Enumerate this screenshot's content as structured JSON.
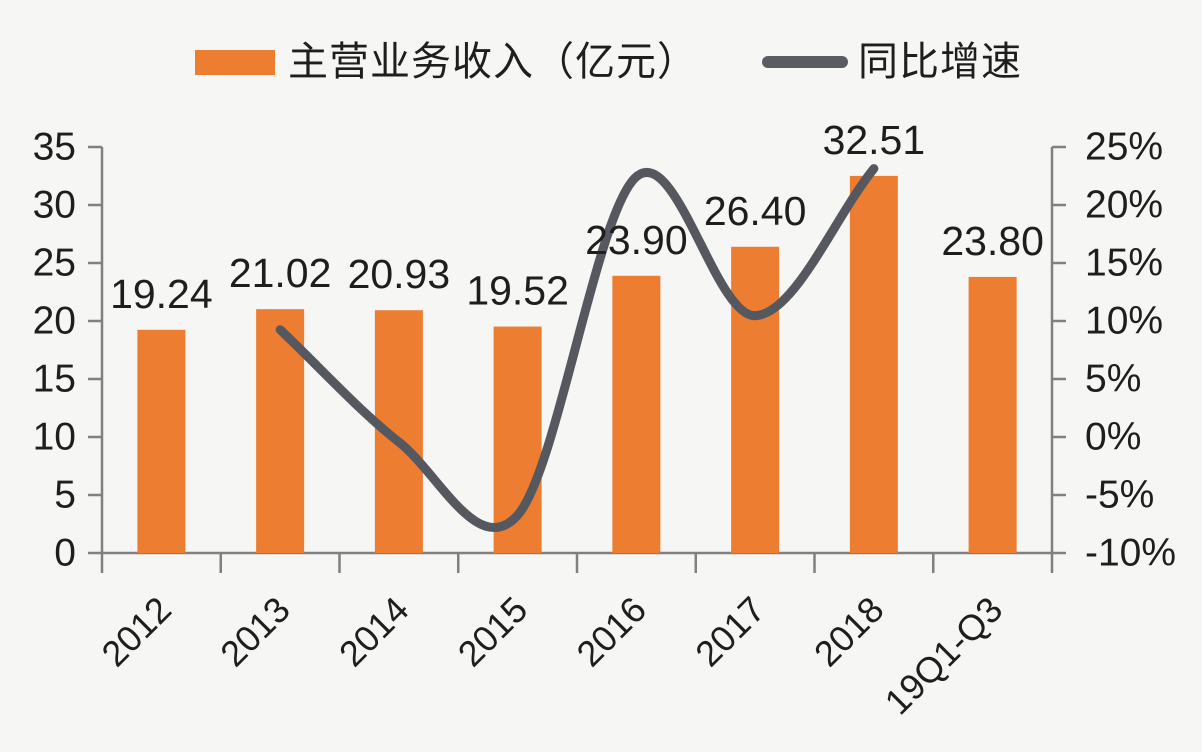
{
  "legend": [
    {
      "label": "主营业务收入（亿元）",
      "type": "bar-swatch",
      "color": "#ED7D31"
    },
    {
      "label": "同比增速",
      "type": "line-swatch",
      "color": "#595C61"
    }
  ],
  "colors": {
    "bar": "#ED7D31",
    "line": "#55585E",
    "legend_line": "#595C61",
    "axis": "#808080",
    "text": "#1e1e1e",
    "background": "#f6f6f4"
  },
  "chart_data": {
    "type": "bar",
    "subtype": "bar+smooth-line, dual axis",
    "categories": [
      "2012",
      "2013",
      "2014",
      "2015",
      "2016",
      "2017",
      "2018",
      "19Q1-Q3"
    ],
    "series": [
      {
        "name": "主营业务收入（亿元）",
        "type": "bar",
        "axis": "left",
        "values": [
          19.24,
          21.02,
          20.93,
          19.52,
          23.9,
          26.4,
          32.51,
          23.8
        ],
        "labels": [
          "19.24",
          "21.02",
          "20.93",
          "19.52",
          "23.90",
          "26.40",
          "32.51",
          "23.80"
        ]
      },
      {
        "name": "同比增速",
        "type": "line",
        "axis": "right",
        "unit": "%",
        "values": [
          null,
          9.25,
          -0.43,
          -6.74,
          22.44,
          10.46,
          23.14,
          null
        ]
      }
    ],
    "left_axis": {
      "min": 0,
      "max": 35,
      "step": 5,
      "ticks": [
        "0",
        "5",
        "10",
        "15",
        "20",
        "25",
        "30",
        "35"
      ]
    },
    "right_axis": {
      "min": -10,
      "max": 25,
      "step": 5,
      "ticks": [
        "-10%",
        "-5%",
        "0%",
        "5%",
        "10%",
        "15%",
        "20%",
        "25%"
      ]
    },
    "grid": false,
    "legend_position": "top",
    "x_label_rotation": -45
  }
}
